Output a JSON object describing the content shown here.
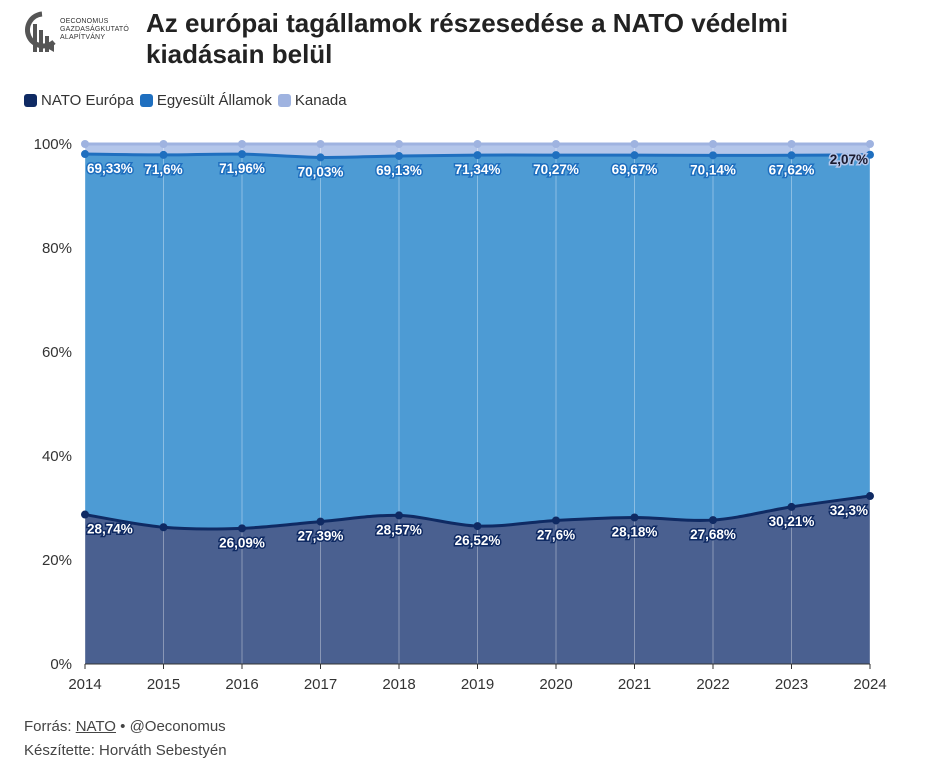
{
  "header": {
    "logo_lines": [
      "OECONOMUS",
      "GAZDASÁGKUTATÓ",
      "ALAPÍTVÁNY"
    ],
    "title": "Az európai tagállamok részesedése a NATO védelmi kiadásain belül"
  },
  "footer": {
    "source_prefix": "Forrás:",
    "source_link": "NATO",
    "source_suffix": "• @Oeconomus",
    "author": "Készítette: Horváth Sebestyén"
  },
  "colors": {
    "europe": "#0f2a63",
    "us": "#1f6fbf",
    "canada": "#9fb3e0",
    "europe_fill": "#4a6090",
    "us_fill": "#4d9bd4",
    "canada_fill": "#b4c6ea"
  },
  "chart_data": {
    "type": "area",
    "stacked": true,
    "x": [
      "2014",
      "2015",
      "2016",
      "2017",
      "2018",
      "2019",
      "2020",
      "2021",
      "2022",
      "2023",
      "2024"
    ],
    "ylim": [
      0,
      100
    ],
    "yticks": [
      "0%",
      "20%",
      "40%",
      "60%",
      "80%",
      "100%"
    ],
    "series": [
      {
        "name": "NATO Európa",
        "values": [
          28.74,
          26.3,
          26.09,
          27.39,
          28.57,
          26.52,
          27.6,
          28.18,
          27.68,
          30.21,
          32.3
        ],
        "labels": [
          "28,74%",
          "",
          "26,09%",
          "27,39%",
          "28,57%",
          "26,52%",
          "27,6%",
          "28,18%",
          "27,68%",
          "30,21%",
          "32,3%"
        ]
      },
      {
        "name": "Egyesült Államok",
        "values": [
          69.33,
          71.6,
          71.96,
          70.03,
          69.13,
          71.34,
          70.27,
          69.67,
          70.14,
          67.62,
          65.63
        ],
        "labels": [
          "69,33%",
          "71,6%",
          "71,96%",
          "70,03%",
          "69,13%",
          "71,34%",
          "70,27%",
          "69,67%",
          "70,14%",
          "67,62%",
          ""
        ]
      },
      {
        "name": "Kanada",
        "values": [
          1.93,
          2.1,
          1.95,
          2.58,
          2.3,
          2.14,
          2.13,
          2.15,
          2.18,
          2.17,
          2.07
        ],
        "labels": [
          "",
          "",
          "",
          "",
          "",
          "",
          "",
          "",
          "",
          "",
          "2,07%"
        ]
      }
    ],
    "legend_position": "top-left",
    "grid": false
  }
}
